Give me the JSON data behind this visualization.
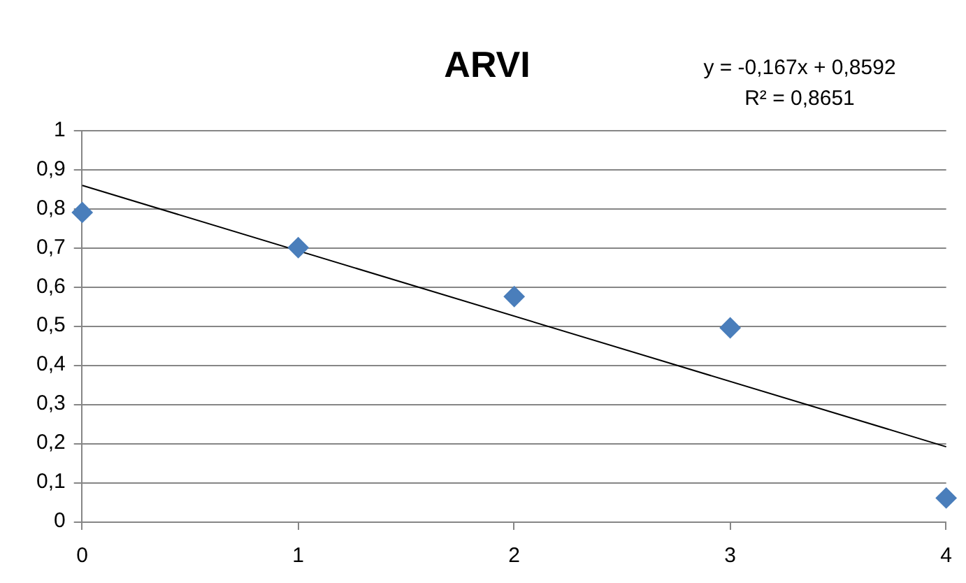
{
  "chart_data": {
    "type": "scatter",
    "title": "ARVI",
    "annotations": [
      "y = -0,167x + 0,8592",
      "R² = 0,8651"
    ],
    "xlim": [
      0,
      4
    ],
    "xticks": [
      0,
      1,
      2,
      3,
      4
    ],
    "ylim": [
      0,
      1
    ],
    "yticks": [
      0,
      {
        "value": 0.1,
        "label": "0,1"
      },
      {
        "value": 0.2,
        "label": "0,2"
      },
      {
        "value": 0.3,
        "label": "0,3"
      },
      {
        "value": 0.4,
        "label": "0,4"
      },
      {
        "value": 0.5,
        "label": "0,5"
      },
      {
        "value": 0.6,
        "label": "0,6"
      },
      {
        "value": 0.7,
        "label": "0,7"
      },
      {
        "value": 0.8,
        "label": "0,8"
      },
      {
        "value": 0.9,
        "label": "0,9"
      },
      1
    ],
    "grid": "y",
    "legend": false,
    "series": [
      {
        "type": "scatter",
        "color": "#4a7ebb",
        "marker": "diamond",
        "x": [
          0,
          1,
          2,
          3,
          4
        ],
        "values": [
          0.79,
          0.7,
          0.575,
          0.495,
          0.06
        ]
      },
      {
        "type": "line",
        "color": "#000000",
        "marker": "none",
        "x": [
          0,
          4
        ],
        "values": [
          0.859,
          0.191
        ]
      }
    ]
  }
}
